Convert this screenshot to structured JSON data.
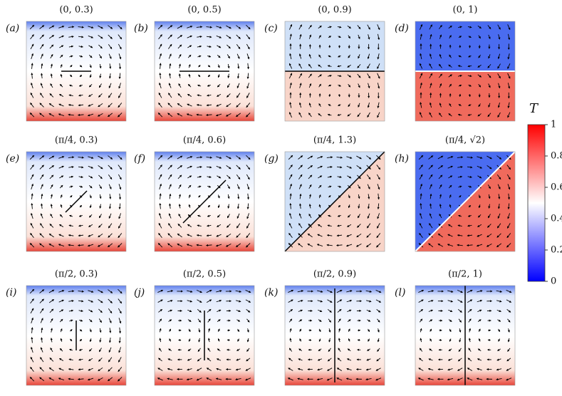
{
  "panels": [
    {
      "label": "(a)",
      "title": "(0, 0.3)"
    },
    {
      "label": "(b)",
      "title": "(0, 0.5)"
    },
    {
      "label": "(c)",
      "title": "(0, 0.9)"
    },
    {
      "label": "(d)",
      "title": "(0, 1)"
    },
    {
      "label": "(e)",
      "title": "(π/4, 0.3)"
    },
    {
      "label": "(f)",
      "title": "(π/4, 0.6)"
    },
    {
      "label": "(g)",
      "title": "(π/4, 1.3)"
    },
    {
      "label": "(h)",
      "title": "(π/4, √2)"
    },
    {
      "label": "(i)",
      "title": "(π/2, 0.3)"
    },
    {
      "label": "(j)",
      "title": "(π/2, 0.5)"
    },
    {
      "label": "(k)",
      "title": "(π/2, 0.9)"
    },
    {
      "label": "(l)",
      "title": "(π/2, 1)"
    }
  ],
  "colorbar": {
    "label": "T",
    "ticks": [
      "0",
      "0.2",
      "0.4",
      "0.6",
      "0.8",
      "1"
    ]
  }
}
